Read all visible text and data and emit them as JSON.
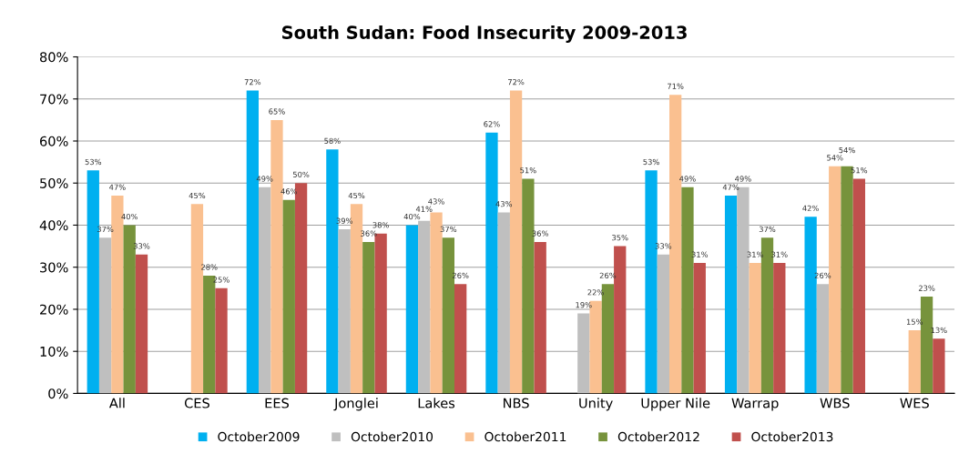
{
  "chart_data": {
    "type": "bar",
    "title": "South Sudan: Food Insecurity 2009-2013",
    "categories": [
      "All",
      "CES",
      "EES",
      "Jonglei",
      "Lakes",
      "NBS",
      "Unity",
      "Upper Nile",
      "Warrap",
      "WBS",
      "WES"
    ],
    "series": [
      {
        "name": "October2009",
        "color": "#00b0f0",
        "values": [
          53,
          null,
          72,
          58,
          40,
          62,
          null,
          53,
          47,
          42,
          null
        ],
        "value_labels": [
          "53%",
          null,
          "72%",
          "58%",
          "40%",
          "62%",
          null,
          "53%",
          "47%",
          "42%",
          null
        ]
      },
      {
        "name": "October2010",
        "color": "#bfbfbf",
        "values": [
          37,
          null,
          49,
          39,
          41,
          43,
          19,
          33,
          49,
          26,
          null
        ],
        "value_labels": [
          "37%",
          null,
          "49%",
          "39%",
          "41%",
          "43%",
          "19%",
          "33%",
          "49%",
          "26%",
          null
        ]
      },
      {
        "name": "October2011",
        "color": "#fac090",
        "values": [
          47,
          45,
          65,
          45,
          43,
          72,
          22,
          71,
          31,
          54,
          15
        ],
        "value_labels": [
          "47%",
          "45%",
          "65%",
          "45%",
          "43%",
          "72%",
          "22%",
          "71%",
          "31%",
          "54%",
          "15%"
        ]
      },
      {
        "name": "October2012",
        "color": "#77933c",
        "values": [
          40,
          28,
          46,
          36,
          37,
          51,
          26,
          49,
          37,
          54,
          23
        ],
        "value_labels": [
          "40%",
          "28%",
          "46%",
          "36%",
          "37%",
          "51%",
          "26%",
          "49%",
          "37%",
          "54%",
          "23%"
        ]
      },
      {
        "name": "October2013",
        "color": "#c0504d",
        "values": [
          33,
          25,
          50,
          38,
          26,
          36,
          35,
          31,
          31,
          51,
          13
        ],
        "value_labels": [
          "33%",
          "25%",
          "50%",
          "38%",
          "26%",
          "36%",
          "35%",
          "31%",
          "31%",
          "51%",
          "13%"
        ]
      }
    ],
    "ylim": [
      0,
      80
    ],
    "yticks": [
      {
        "value": 0,
        "label": "0%"
      },
      {
        "value": 10,
        "label": "10%"
      },
      {
        "value": 20,
        "label": "20%"
      },
      {
        "value": 30,
        "label": "30%"
      },
      {
        "value": 40,
        "label": "40%"
      },
      {
        "value": 50,
        "label": "50%"
      },
      {
        "value": 60,
        "label": "60%"
      },
      {
        "value": 70,
        "label": "70%"
      },
      {
        "value": 80,
        "label": "80%"
      }
    ],
    "grid": "y",
    "legend": "bottom"
  }
}
